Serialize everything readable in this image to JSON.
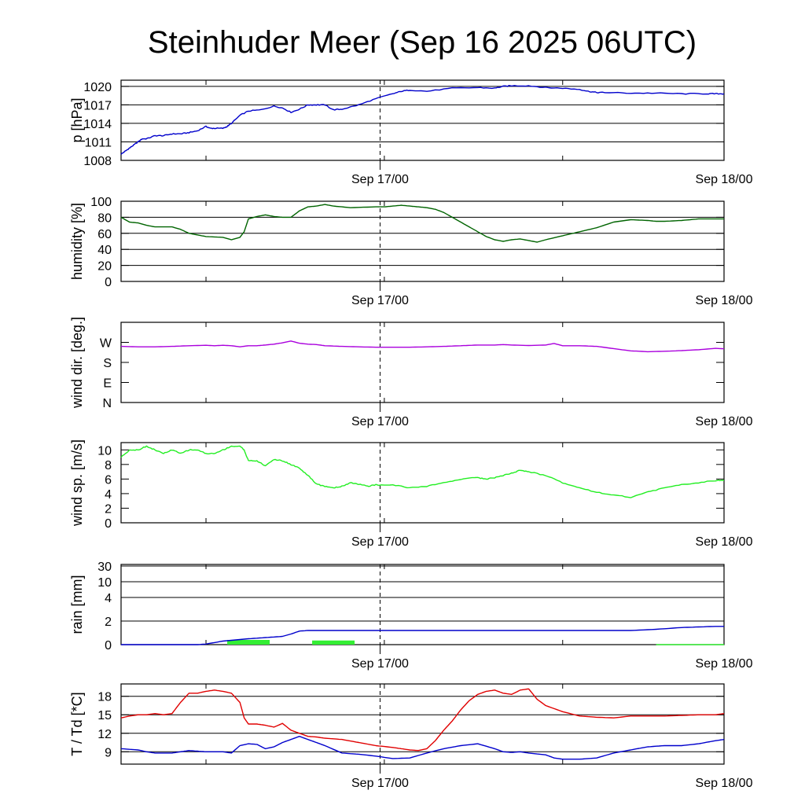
{
  "title": "Steinhuder Meer (Sep 16 2025 06UTC)",
  "x_labels": [
    "Sep 17/00",
    "Sep 18/00"
  ],
  "chart_data": [
    {
      "type": "line",
      "ylabel": "p [hPa]",
      "ylim": [
        1008,
        1021
      ],
      "yticks": [
        1008,
        1011,
        1014,
        1017,
        1020
      ],
      "ytick_labels": [
        "1008",
        "1011",
        "1014",
        "1017",
        "1020"
      ],
      "grid": true,
      "series": [
        {
          "name": "pressure",
          "color": "#0000cc",
          "jagged": true,
          "x": [
            0,
            1,
            2,
            3,
            4,
            5,
            6,
            8,
            10,
            12,
            14,
            16,
            18,
            20,
            21,
            22,
            24,
            25,
            26,
            28,
            30,
            33,
            36,
            38,
            40,
            42,
            44,
            46,
            48,
            50,
            52,
            56,
            60,
            64,
            66,
            68,
            72,
            78,
            84,
            88,
            90,
            92,
            96,
            100,
            104,
            108,
            110,
            112,
            114,
            120,
            126,
            132,
            138,
            140,
            142
          ],
          "y": [
            1009.0,
            1009.5,
            1010,
            1010.5,
            1011,
            1011.5,
            1011.5,
            1012,
            1012,
            1012.3,
            1012.3,
            1012.5,
            1012.8,
            1013.5,
            1013.2,
            1013.2,
            1013.2,
            1013.5,
            1014,
            1015.3,
            1016,
            1016.2,
            1016.8,
            1016.5,
            1015.8,
            1016.3,
            1017,
            1017,
            1017,
            1016.2,
            1016.3,
            1017,
            1018,
            1018.8,
            1019.2,
            1019.4,
            1019.2,
            1019.7,
            1019.8,
            1019.7,
            1020.0,
            1020.1,
            1020.1,
            1019.8,
            1019.7,
            1019.5,
            1019.2,
            1019.0,
            1019.0,
            1018.9,
            1018.9,
            1018.8,
            1018.8,
            1018.8,
            1018.8
          ]
        }
      ]
    },
    {
      "type": "line",
      "ylabel": "humidity [%]",
      "ylim": [
        0,
        100
      ],
      "yticks": [
        0,
        20,
        40,
        60,
        80,
        100
      ],
      "ytick_labels": [
        "0",
        "20",
        "40",
        "60",
        "80",
        "100"
      ],
      "grid": true,
      "series": [
        {
          "name": "relative humidity",
          "color": "#006400",
          "jagged": false,
          "x": [
            0,
            2,
            4,
            6,
            8,
            12,
            14,
            16,
            18,
            20,
            24,
            26,
            28,
            29,
            30,
            32,
            34,
            36,
            38,
            40,
            42,
            44,
            46,
            48,
            50,
            54,
            60,
            62,
            64,
            66,
            68,
            70,
            72,
            74,
            76,
            78,
            80,
            82,
            84,
            86,
            88,
            90,
            92,
            94,
            96,
            98,
            100,
            104,
            108,
            112,
            116,
            120,
            124,
            126,
            128,
            132,
            136,
            140,
            142
          ],
          "y": [
            80,
            74,
            73,
            70,
            68,
            68,
            65,
            60,
            58,
            56,
            55,
            52,
            55,
            62,
            78,
            81,
            83,
            81,
            80,
            80,
            88,
            93,
            94,
            96,
            94,
            92,
            93,
            93,
            94,
            95,
            94,
            93,
            92,
            90,
            86,
            80,
            74,
            68,
            62,
            56,
            52,
            50,
            52,
            53,
            51,
            49,
            52,
            57,
            62,
            67,
            74,
            77,
            76,
            75,
            75,
            76,
            78,
            78,
            78
          ]
        }
      ]
    },
    {
      "type": "line",
      "ylabel": "wind dir. [deg.]",
      "ylim": [
        0,
        360
      ],
      "yticks": [
        0,
        90,
        180,
        270
      ],
      "ytick_labels": [
        "N",
        "E",
        "S",
        "W"
      ],
      "grid": false,
      "series": [
        {
          "name": "wind direction",
          "color": "#aa00dd",
          "jagged": false,
          "x": [
            0,
            4,
            8,
            12,
            16,
            20,
            22,
            24,
            26,
            28,
            30,
            32,
            34,
            36,
            38,
            40,
            42,
            44,
            46,
            48,
            52,
            56,
            60,
            64,
            68,
            72,
            76,
            80,
            84,
            88,
            90,
            92,
            96,
            100,
            102,
            104,
            108,
            112,
            116,
            120,
            124,
            128,
            132,
            136,
            140,
            142
          ],
          "y": [
            252,
            250,
            250,
            252,
            255,
            257,
            255,
            257,
            255,
            250,
            255,
            255,
            258,
            262,
            268,
            276,
            266,
            262,
            260,
            255,
            252,
            250,
            248,
            248,
            248,
            250,
            252,
            255,
            258,
            258,
            260,
            258,
            256,
            258,
            265,
            255,
            255,
            252,
            242,
            232,
            228,
            230,
            233,
            237,
            243,
            241
          ]
        }
      ]
    },
    {
      "type": "line",
      "ylabel": "wind sp. [m/s]",
      "ylim": [
        0,
        11
      ],
      "yticks": [
        0,
        2,
        4,
        6,
        8,
        10
      ],
      "ytick_labels": [
        "0",
        "2",
        "4",
        "6",
        "8",
        "10"
      ],
      "grid": false,
      "series": [
        {
          "name": "wind speed",
          "color": "#22ee22",
          "jagged": true,
          "x": [
            0,
            2,
            4,
            6,
            8,
            10,
            12,
            14,
            16,
            18,
            20,
            22,
            24,
            26,
            28,
            29,
            30,
            32,
            34,
            36,
            38,
            40,
            42,
            44,
            46,
            48,
            50,
            52,
            54,
            56,
            58,
            60,
            64,
            68,
            72,
            76,
            80,
            84,
            86,
            88,
            90,
            92,
            94,
            96,
            100,
            104,
            108,
            112,
            116,
            120,
            124,
            128,
            132,
            136,
            140,
            142
          ],
          "y": [
            9.0,
            10.0,
            10.0,
            10.5,
            10.0,
            9.5,
            10.0,
            9.5,
            10.0,
            10.0,
            9.5,
            9.5,
            10.0,
            10.5,
            10.5,
            10.0,
            8.5,
            8.5,
            7.8,
            8.7,
            8.5,
            8.0,
            7.5,
            6.5,
            5.3,
            5.0,
            4.8,
            5.0,
            5.5,
            5.3,
            5.0,
            5.2,
            5.2,
            4.8,
            5.0,
            5.5,
            6.0,
            6.2,
            6.0,
            6.2,
            6.5,
            6.8,
            7.2,
            7.0,
            6.5,
            5.5,
            4.8,
            4.2,
            3.8,
            3.5,
            4.2,
            4.8,
            5.2,
            5.5,
            5.8,
            5.8
          ]
        }
      ]
    },
    {
      "type": "bar+line",
      "ylabel": "rain [mm]",
      "ylim": [
        0,
        30
      ],
      "scale": "nonlinear",
      "yticks": [
        0,
        2,
        4,
        10,
        30
      ],
      "ytick_labels": [
        "0",
        "2",
        "4",
        "10",
        "30"
      ],
      "grid": true,
      "bars": {
        "name": "precipitation",
        "color": "#33ee33",
        "start": [
          25,
          45,
          126
        ],
        "end": [
          35,
          55,
          142
        ],
        "values": [
          0.4,
          0.35,
          0.05
        ]
      },
      "series": [
        {
          "name": "accumulated precipitation",
          "color": "#0000cc",
          "jagged": false,
          "x": [
            0,
            18,
            20,
            24,
            30,
            34,
            38,
            40,
            42,
            44,
            48,
            60,
            80,
            100,
            120,
            126,
            132,
            136,
            140,
            142
          ],
          "y": [
            0,
            0,
            0.05,
            0.3,
            0.5,
            0.6,
            0.7,
            0.9,
            1.15,
            1.2,
            1.2,
            1.2,
            1.2,
            1.2,
            1.2,
            1.3,
            1.45,
            1.5,
            1.55,
            1.55
          ]
        }
      ]
    },
    {
      "type": "line",
      "ylabel": "T / Td [*C]",
      "ylim": [
        7,
        20
      ],
      "yticks": [
        9,
        12,
        15,
        18
      ],
      "ytick_labels": [
        "9",
        "12",
        "15",
        "18"
      ],
      "grid": true,
      "series": [
        {
          "name": "temperature",
          "color": "#e00000",
          "jagged": false,
          "x": [
            0,
            2,
            4,
            6,
            8,
            10,
            12,
            14,
            16,
            18,
            20,
            22,
            24,
            26,
            28,
            29,
            30,
            31,
            32,
            34,
            36,
            38,
            40,
            42,
            44,
            46,
            48,
            52,
            56,
            60,
            64,
            66,
            68,
            70,
            72,
            74,
            76,
            78,
            80,
            82,
            84,
            86,
            88,
            90,
            92,
            94,
            96,
            98,
            100,
            104,
            108,
            112,
            116,
            120,
            124,
            128,
            132,
            136,
            140,
            142
          ],
          "y": [
            14.5,
            14.8,
            15,
            15,
            15.2,
            15.0,
            15.2,
            17,
            18.5,
            18.5,
            18.8,
            19.0,
            18.8,
            18.5,
            17,
            14.5,
            13.5,
            13.5,
            13.5,
            13.3,
            13.0,
            13.6,
            12.5,
            12.0,
            11.5,
            11.4,
            11.2,
            11.0,
            10.5,
            10.0,
            9.7,
            9.5,
            9.3,
            9.2,
            9.5,
            10.8,
            12.5,
            14.0,
            15.8,
            17.3,
            18.3,
            18.8,
            19.0,
            18.5,
            18.3,
            19.0,
            19.2,
            17.5,
            16.5,
            15.5,
            14.8,
            14.6,
            14.5,
            14.8,
            14.8,
            14.8,
            14.9,
            15.0,
            15.0,
            15.2
          ]
        },
        {
          "name": "dew point",
          "color": "#0000cc",
          "jagged": false,
          "x": [
            0,
            4,
            6,
            8,
            12,
            14,
            16,
            18,
            20,
            22,
            24,
            26,
            28,
            30,
            32,
            34,
            36,
            38,
            40,
            42,
            44,
            46,
            48,
            52,
            56,
            60,
            64,
            68,
            72,
            76,
            80,
            84,
            88,
            90,
            92,
            94,
            96,
            100,
            102,
            104,
            108,
            112,
            116,
            120,
            124,
            128,
            132,
            136,
            140,
            142
          ],
          "y": [
            9.5,
            9.3,
            9.0,
            8.8,
            8.8,
            9.0,
            9.2,
            9.1,
            9.0,
            9.0,
            9.0,
            8.8,
            10.0,
            10.3,
            10.2,
            9.5,
            9.8,
            10.5,
            11.0,
            11.5,
            11.0,
            10.5,
            10.0,
            8.8,
            8.6,
            8.3,
            7.9,
            8.0,
            8.8,
            9.5,
            10.0,
            10.3,
            9.5,
            9.0,
            8.9,
            9.0,
            8.8,
            8.5,
            8.0,
            7.8,
            7.8,
            8.0,
            8.8,
            9.3,
            9.8,
            10.0,
            10.0,
            10.3,
            10.8,
            11.0
          ]
        }
      ]
    }
  ]
}
